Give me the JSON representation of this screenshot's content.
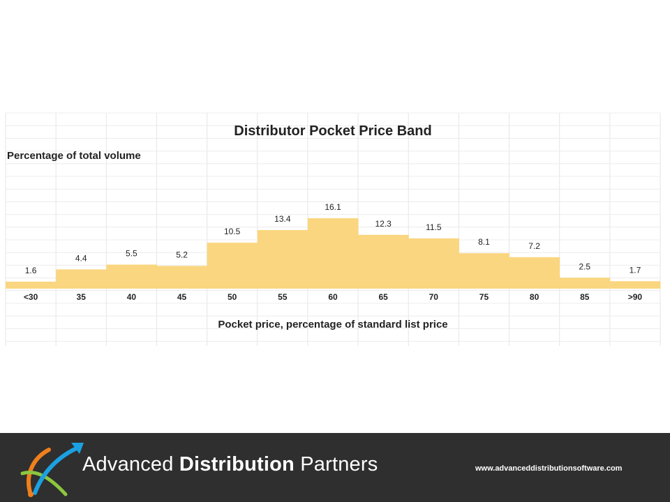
{
  "chart_data": {
    "type": "bar",
    "title": "Distributor Pocket Price Band",
    "ylabel": "Percentage of total volume",
    "xlabel": "Pocket price, percentage of standard list price",
    "categories": [
      "<30",
      "35",
      "40",
      "45",
      "50",
      "55",
      "60",
      "65",
      "70",
      "75",
      "80",
      "85",
      ">90"
    ],
    "values": [
      1.6,
      4.4,
      5.5,
      5.2,
      10.5,
      13.4,
      16.1,
      12.3,
      11.5,
      8.1,
      7.2,
      2.5,
      1.7
    ],
    "value_labels": [
      "1.6",
      "4.4",
      "5.5",
      "5.2",
      "10.5",
      "13.4",
      "16.1",
      "12.3",
      "11.5",
      "8.1",
      "7.2",
      "2.5",
      "1.7"
    ],
    "bar_color": "#fad680",
    "grid": true,
    "legend": "none"
  },
  "footer": {
    "brand_regular_1": "Advanced ",
    "brand_bold": "Distribution",
    "brand_regular_2": " Partners",
    "website": "www.advanceddistributionsoftware.com",
    "background_color": "#2f2f2f"
  }
}
